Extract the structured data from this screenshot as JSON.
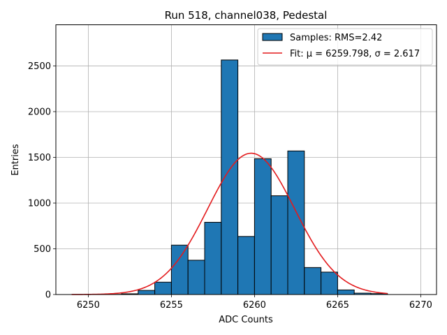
{
  "chart_data": {
    "type": "bar",
    "title": "Run 518, channel038, Pedestal",
    "xlabel": "ADC Counts",
    "ylabel": "Entries",
    "xlim": [
      6248.05,
      6270.95
    ],
    "ylim": [
      0,
      2950
    ],
    "grid": true,
    "xticks": [
      6250,
      6255,
      6260,
      6265,
      6270
    ],
    "yticks": [
      0,
      500,
      1000,
      1500,
      2000,
      2500
    ],
    "histogram": {
      "name": "Samples: RMS=2.42",
      "color": "#1f77b4",
      "edgecolor": "#000000",
      "bin_edges": [
        6249,
        6250,
        6251,
        6252,
        6253,
        6254,
        6255,
        6256,
        6257,
        6258,
        6259,
        6260,
        6261,
        6262,
        6263,
        6264,
        6265,
        6266,
        6267,
        6268,
        6269,
        6270
      ],
      "counts": [
        0,
        0,
        2,
        8,
        45,
        135,
        540,
        375,
        790,
        2565,
        635,
        1485,
        1080,
        1570,
        295,
        245,
        50,
        15,
        10,
        0,
        0
      ]
    },
    "fit": {
      "name": "Fit: μ = 6259.798, σ = 2.617",
      "color": "#e31a1c",
      "mu": 6259.798,
      "sigma": 2.617,
      "amplitude": 1545,
      "x_range": [
        6249,
        6268
      ]
    },
    "legend_position": "upper-right"
  }
}
